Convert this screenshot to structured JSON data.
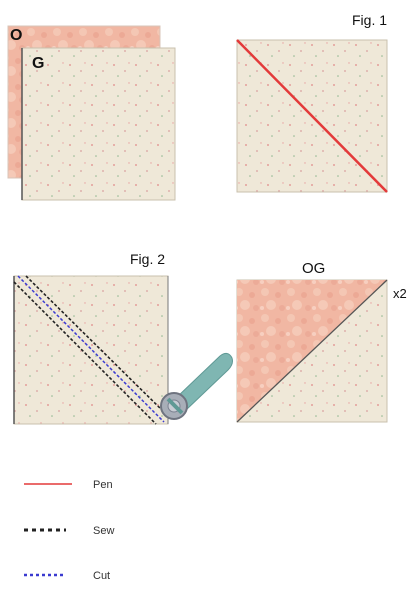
{
  "figure1": {
    "caption": "Fig. 1",
    "back_label": "O",
    "front_label": "G"
  },
  "figure2": {
    "caption": "Fig. 2",
    "result_label": "OG",
    "multiplier": "x2"
  },
  "legend": {
    "items": [
      {
        "label": "Pen",
        "style": "solid",
        "color": "#e33a3a"
      },
      {
        "label": "Sew",
        "style": "dotted",
        "color": "#222222"
      },
      {
        "label": "Cut",
        "style": "dotted",
        "color": "#3a3ad0"
      }
    ]
  },
  "colors": {
    "cream_fabric": "#efe8d8",
    "pink_fabric": "#f1b7a3",
    "pen_line": "#e33a3a",
    "sew_line": "#222222",
    "cut_line": "#3a3ad0",
    "rotary_cutter": "#7fb6b2"
  }
}
